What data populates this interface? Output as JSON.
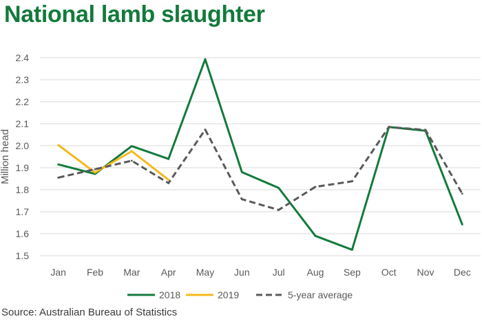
{
  "chart_data": {
    "type": "line",
    "title": "National lamb slaughter",
    "ylabel": "Million head",
    "xlabel": "",
    "source": "Source: Australian Bureau of Statistics",
    "categories": [
      "Jan",
      "Feb",
      "Mar",
      "Apr",
      "May",
      "Jun",
      "Jul",
      "Aug",
      "Sep",
      "Oct",
      "Nov",
      "Dec"
    ],
    "ylim": [
      1.5,
      2.4
    ],
    "yticks": [
      "2.4",
      "2.3",
      "2.2",
      "2.1",
      "2.0",
      "1.9",
      "1.8",
      "1.7",
      "1.6",
      "1.5"
    ],
    "grid": true,
    "legend_position": "bottom",
    "series": [
      {
        "name": "2018",
        "color": "#137a3b",
        "dash": "solid",
        "values": [
          1.915,
          1.872,
          1.998,
          1.94,
          2.393,
          1.88,
          1.808,
          1.59,
          1.527,
          2.085,
          2.068,
          1.642
        ]
      },
      {
        "name": "2019",
        "color": "#f5b81c",
        "dash": "solid",
        "values": [
          2.003,
          1.878,
          1.975,
          1.845,
          null,
          null,
          null,
          null,
          null,
          null,
          null,
          null
        ]
      },
      {
        "name": "5-year average",
        "color": "#595959",
        "dash": "dashed",
        "values": [
          1.855,
          1.893,
          1.932,
          1.83,
          2.073,
          1.757,
          1.708,
          1.813,
          1.838,
          2.085,
          2.072,
          1.782
        ]
      }
    ]
  }
}
